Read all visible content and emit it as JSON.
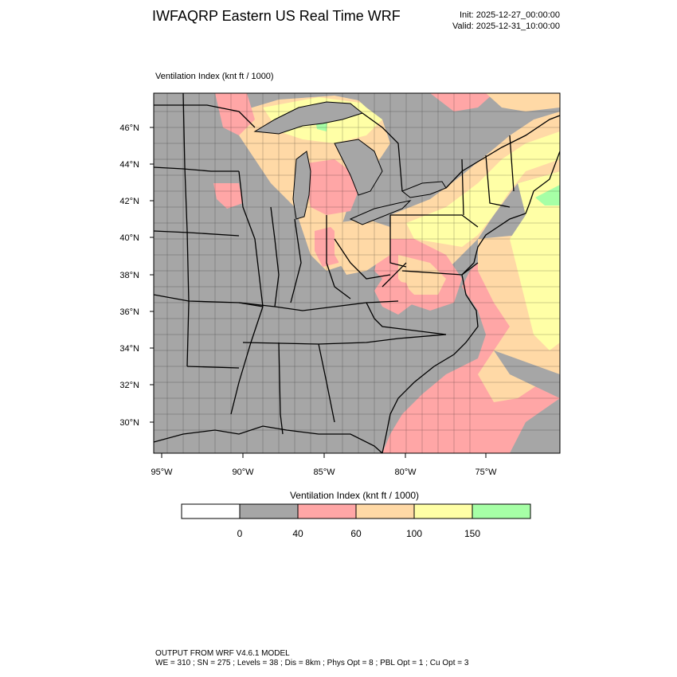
{
  "header": {
    "title": "IWFAQRP Eastern US Real Time WRF",
    "init": "Init: 2025-12-27_00:00:00",
    "valid": "Valid: 2025-12-31_10:00:00"
  },
  "map": {
    "field_label": "Ventilation Index   (knt ft / 1000)",
    "lat_labels": [
      "46°N",
      "44°N",
      "42°N",
      "40°N",
      "38°N",
      "36°N",
      "34°N",
      "32°N",
      "30°N"
    ],
    "lon_labels": [
      "95°W",
      "90°W",
      "85°W",
      "80°W",
      "75°W"
    ],
    "colors": {
      "c0": "#ffffff",
      "c1": "#a6a6a6",
      "c2": "#ffa6a6",
      "c3": "#ffd9a6",
      "c4": "#ffffa6",
      "c5": "#a6ffa6",
      "water": "#a6a6a6"
    }
  },
  "colorbar": {
    "title": "Ventilation Index  (knt ft / 1000)",
    "labels": [
      "0",
      "40",
      "60",
      "100",
      "150"
    ],
    "bins": [
      "#ffffff",
      "#a6a6a6",
      "#ffa6a6",
      "#ffd9a6",
      "#ffffa6",
      "#a6ffa6"
    ]
  },
  "footer": {
    "line1": "OUTPUT FROM WRF V4.6.1 MODEL",
    "line2": "WE = 310 ; SN = 275 ; Levels = 38 ; Dis = 8km ; Phys Opt = 8 ; PBL Opt = 1 ; Cu Opt = 3"
  }
}
